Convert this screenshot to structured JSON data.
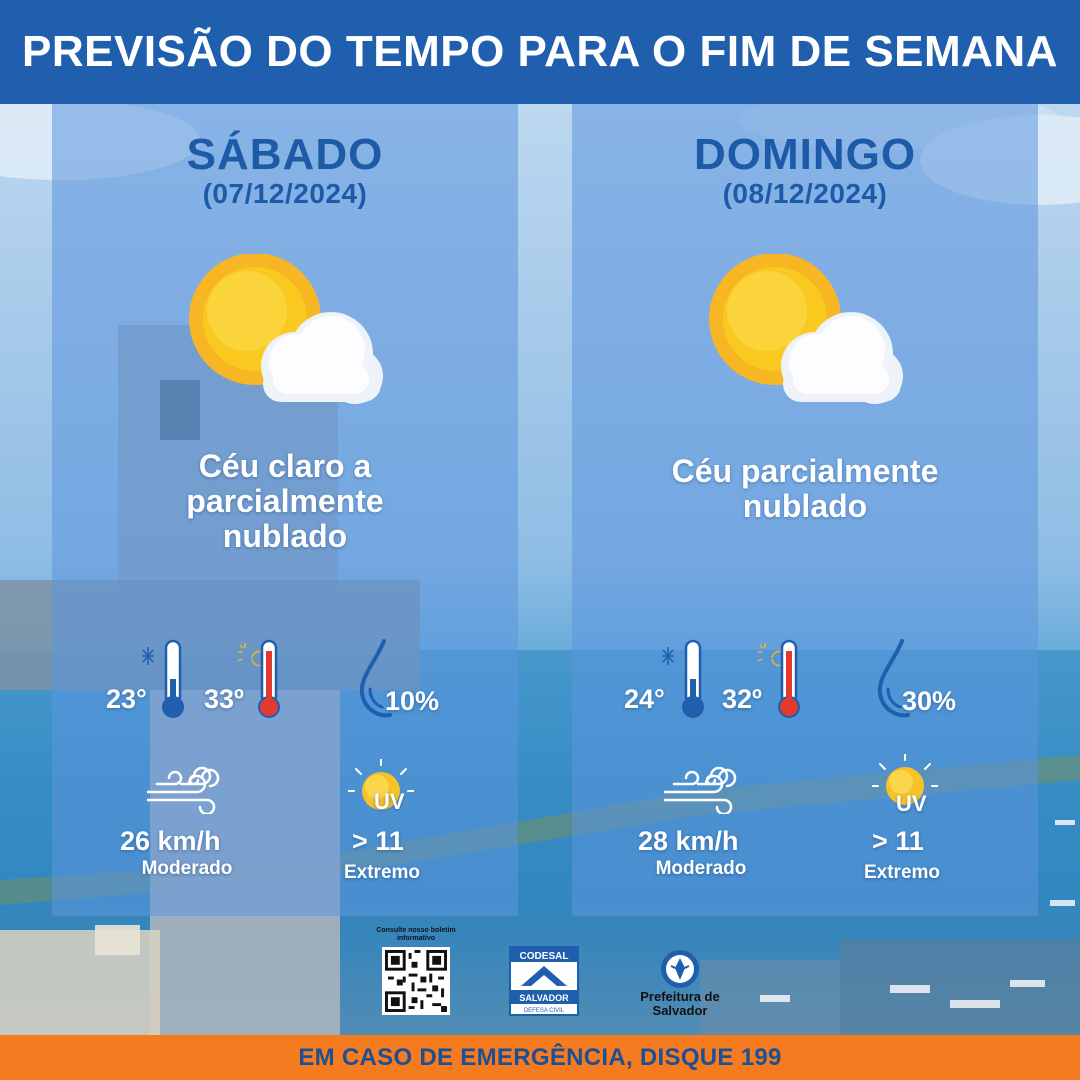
{
  "header": {
    "title": "PREVISÃO DO TEMPO PARA O FIM DE SEMANA"
  },
  "days": [
    {
      "name": "SÁBADO",
      "date": "(07/12/2024)",
      "condition_lines": [
        "Céu claro a",
        "parcialmente",
        "nublado"
      ],
      "temp_min": "23°",
      "temp_max": "33º",
      "rain": "10%",
      "wind": "26 km/h",
      "wind_level": "Moderado",
      "uv": "> 11",
      "uv_level": "Extremo"
    },
    {
      "name": "DOMINGO",
      "date": "(08/12/2024)",
      "condition_lines": [
        "Céu parcialmente",
        "nublado"
      ],
      "temp_min": "24°",
      "temp_max": "32º",
      "rain": "30%",
      "wind": "28 km/h",
      "wind_level": "Moderado",
      "uv": "> 11",
      "uv_level": "Extremo"
    }
  ],
  "logos": {
    "qr_caption": "Consulte nosso boletim informativo",
    "codesal_top": "CODESAL",
    "codesal_mid": "SALVADOR",
    "codesal_bottom": "DEFESA CIVIL",
    "prefeitura": "Prefeitura de Salvador"
  },
  "uv_label": "UV",
  "footer": {
    "text": "EM CASO DE EMERGÊNCIA, DISQUE 199"
  },
  "colors": {
    "header": "#1f5fae",
    "footer": "#f47b1f",
    "day_title": "#1d5aa8"
  }
}
